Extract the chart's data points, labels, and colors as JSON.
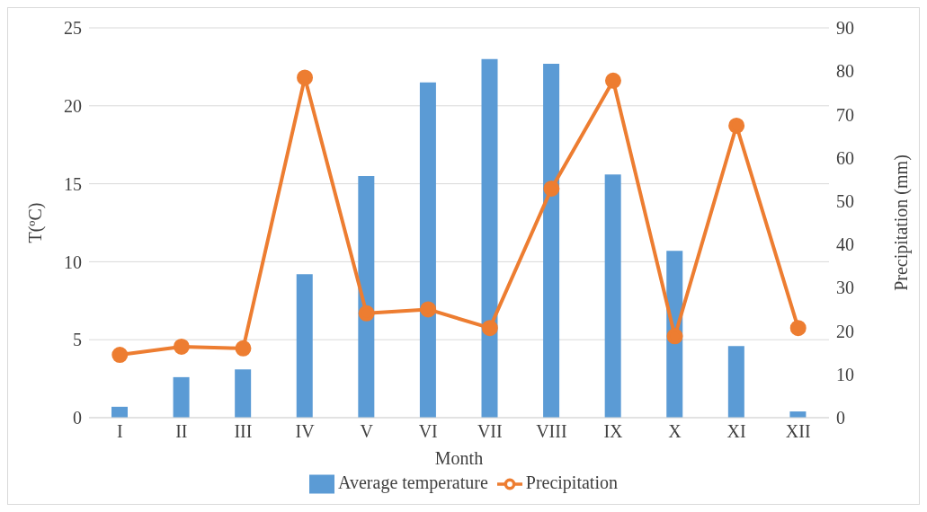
{
  "chart_data": {
    "type": "bar",
    "xlabel": "Month",
    "ylabel": "T(ºC)",
    "y2label": "Precipitation (mm)",
    "categories": [
      "I",
      "II",
      "III",
      "IV",
      "V",
      "VI",
      "VII",
      "VIII",
      "IX",
      "X",
      "XI",
      "XII"
    ],
    "series": [
      {
        "name": "Average temperature",
        "color": "#5b9bd5",
        "values": [
          0.7,
          2.6,
          3.1,
          9.2,
          15.5,
          21.5,
          23.0,
          22.7,
          15.6,
          10.7,
          4.6,
          0.4
        ]
      },
      {
        "name": "Precipitation",
        "type": "line",
        "axis": "y2",
        "color": "#ed7d31",
        "marker": "circle",
        "values": [
          14.5,
          16.4,
          16.0,
          78.5,
          24.1,
          25.0,
          20.7,
          52.9,
          77.8,
          18.8,
          67.4,
          20.7
        ]
      }
    ],
    "ylim": [
      0,
      25
    ],
    "yticks": [
      0,
      5,
      10,
      15,
      20,
      25
    ],
    "y2lim": [
      0,
      90
    ],
    "y2ticks": [
      0,
      10,
      20,
      30,
      40,
      50,
      60,
      70,
      80,
      90
    ],
    "grid": "y",
    "legend": "bottom"
  }
}
